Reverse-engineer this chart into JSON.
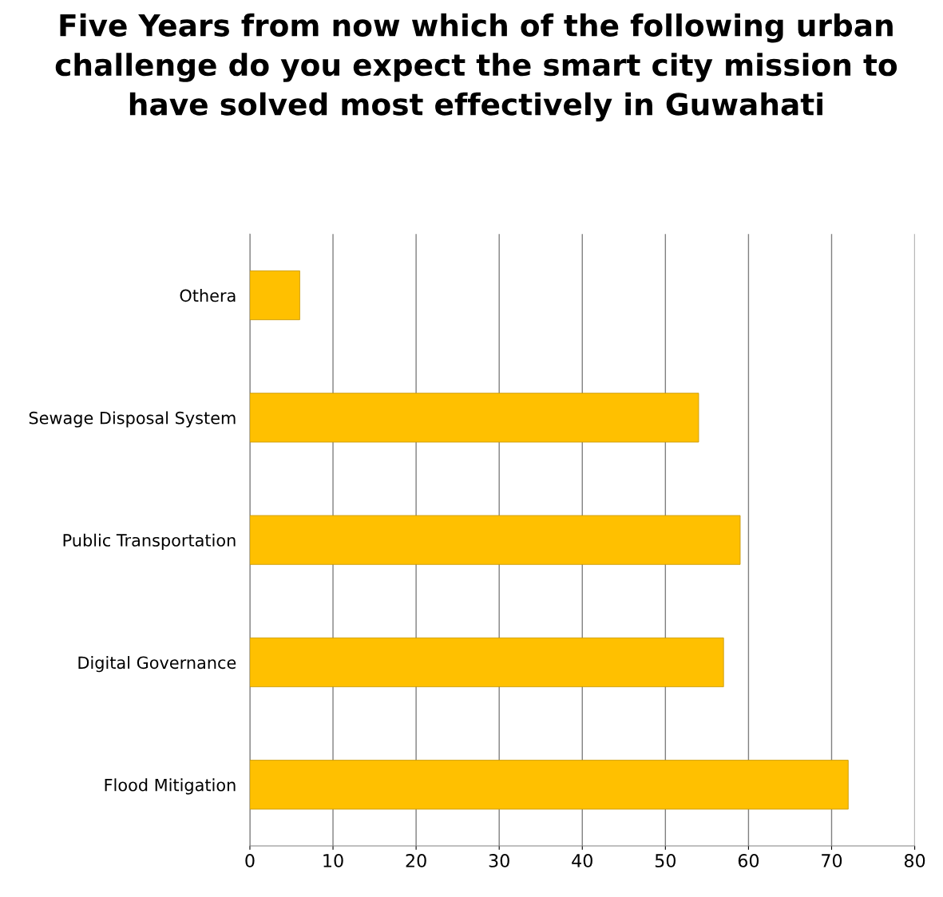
{
  "chart_data": {
    "type": "bar",
    "orientation": "horizontal",
    "title": "Five Years from now which of the following urban challenge do you expect the smart city mission to have solved most effectively in Guwahati",
    "categories": [
      "Othera",
      "Sewage Disposal System",
      "Public Transportation",
      "Digital Governance",
      "Flood Mitigation"
    ],
    "values": [
      6,
      54,
      59,
      57,
      72
    ],
    "color": "#ffc000",
    "xlim": [
      0,
      80
    ],
    "xticks": [
      0,
      10,
      20,
      30,
      40,
      50,
      60,
      70,
      80
    ],
    "grid": "x"
  }
}
